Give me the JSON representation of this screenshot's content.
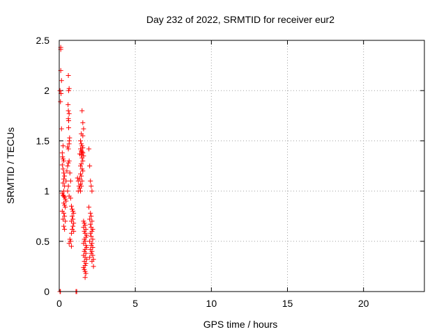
{
  "chart_data": {
    "type": "scatter",
    "title": "Day 232 of 2022, SRMTID for receiver eur2",
    "xlabel": "GPS time / hours",
    "ylabel": "SRMTID / TECUs",
    "xlim": [
      0,
      24
    ],
    "ylim": [
      0,
      2.5
    ],
    "xticks": [
      "0",
      "5",
      "10",
      "15",
      "20"
    ],
    "yticks": [
      "0",
      "0.5",
      "1",
      "1.5",
      "2",
      "2.5"
    ],
    "grid": true,
    "marker": "+",
    "color": "#ff0000",
    "points": [
      [
        0.1,
        2.43
      ],
      [
        0.1,
        2.41
      ],
      [
        0.1,
        2.2
      ],
      [
        0.15,
        2.1
      ],
      [
        0.05,
        2.0
      ],
      [
        0.12,
        1.97
      ],
      [
        0.08,
        1.89
      ],
      [
        0.6,
        2.15
      ],
      [
        0.65,
        2.02
      ],
      [
        0.62,
        2.0
      ],
      [
        0.58,
        1.86
      ],
      [
        0.6,
        1.8
      ],
      [
        0.65,
        1.77
      ],
      [
        0.6,
        1.72
      ],
      [
        0.62,
        1.7
      ],
      [
        0.62,
        1.63
      ],
      [
        0.15,
        1.62
      ],
      [
        0.68,
        1.53
      ],
      [
        0.66,
        1.5
      ],
      [
        0.65,
        1.47
      ],
      [
        0.55,
        1.44
      ],
      [
        0.6,
        1.42
      ],
      [
        0.25,
        1.45
      ],
      [
        0.2,
        1.38
      ],
      [
        0.22,
        1.34
      ],
      [
        0.25,
        1.32
      ],
      [
        0.3,
        1.3
      ],
      [
        0.2,
        1.26
      ],
      [
        0.25,
        1.22
      ],
      [
        0.3,
        1.18
      ],
      [
        0.35,
        1.15
      ],
      [
        0.3,
        1.12
      ],
      [
        0.25,
        1.08
      ],
      [
        0.35,
        1.05
      ],
      [
        0.3,
        1.0
      ],
      [
        0.45,
        1.1
      ],
      [
        0.5,
        1.2
      ],
      [
        0.55,
        1.25
      ],
      [
        0.6,
        1.28
      ],
      [
        0.65,
        1.3
      ],
      [
        0.7,
        1.18
      ],
      [
        0.75,
        1.1
      ],
      [
        0.6,
        1.05
      ],
      [
        0.55,
        1.0
      ],
      [
        0.65,
        0.95
      ],
      [
        0.2,
        0.98
      ],
      [
        0.25,
        0.96
      ],
      [
        0.3,
        0.95
      ],
      [
        0.35,
        0.94
      ],
      [
        0.4,
        0.92
      ],
      [
        0.45,
        0.9
      ],
      [
        0.3,
        0.88
      ],
      [
        0.35,
        0.86
      ],
      [
        0.4,
        0.84
      ],
      [
        0.2,
        0.8
      ],
      [
        0.3,
        0.78
      ],
      [
        0.35,
        0.75
      ],
      [
        0.25,
        0.72
      ],
      [
        0.4,
        0.7
      ],
      [
        0.3,
        0.65
      ],
      [
        0.35,
        0.62
      ],
      [
        0.75,
        0.93
      ],
      [
        0.8,
        0.85
      ],
      [
        0.85,
        0.82
      ],
      [
        0.9,
        0.8
      ],
      [
        0.95,
        0.78
      ],
      [
        0.85,
        0.75
      ],
      [
        0.9,
        0.72
      ],
      [
        0.8,
        0.7
      ],
      [
        0.95,
        0.68
      ],
      [
        0.9,
        0.65
      ],
      [
        0.85,
        0.62
      ],
      [
        0.95,
        0.6
      ],
      [
        0.8,
        0.58
      ],
      [
        0.7,
        0.52
      ],
      [
        0.75,
        0.5
      ],
      [
        0.65,
        0.48
      ],
      [
        0.8,
        0.45
      ],
      [
        1.5,
        1.8
      ],
      [
        1.55,
        1.68
      ],
      [
        1.6,
        1.62
      ],
      [
        1.45,
        1.57
      ],
      [
        1.55,
        1.55
      ],
      [
        1.4,
        1.5
      ],
      [
        1.45,
        1.47
      ],
      [
        1.5,
        1.45
      ],
      [
        1.55,
        1.43
      ],
      [
        1.4,
        1.42
      ],
      [
        1.45,
        1.4
      ],
      [
        1.5,
        1.39
      ],
      [
        1.55,
        1.38
      ],
      [
        1.35,
        1.37
      ],
      [
        1.45,
        1.36
      ],
      [
        1.6,
        1.35
      ],
      [
        1.5,
        1.33
      ],
      [
        1.55,
        1.3
      ],
      [
        1.45,
        1.27
      ],
      [
        1.4,
        1.25
      ],
      [
        1.5,
        1.22
      ],
      [
        1.55,
        1.2
      ],
      [
        1.4,
        1.17
      ],
      [
        1.45,
        1.15
      ],
      [
        1.35,
        1.12
      ],
      [
        1.5,
        1.1
      ],
      [
        1.4,
        1.07
      ],
      [
        1.45,
        1.05
      ],
      [
        1.35,
        1.03
      ],
      [
        1.4,
        1.0
      ],
      [
        1.2,
        1.13
      ],
      [
        1.25,
        1.1
      ],
      [
        1.3,
        1.05
      ],
      [
        1.25,
        1.0
      ],
      [
        1.95,
        1.42
      ],
      [
        2.0,
        1.25
      ],
      [
        2.05,
        1.1
      ],
      [
        2.1,
        1.05
      ],
      [
        2.15,
        1.0
      ],
      [
        1.6,
        0.7
      ],
      [
        1.65,
        0.68
      ],
      [
        1.7,
        0.66
      ],
      [
        1.6,
        0.64
      ],
      [
        1.75,
        0.62
      ],
      [
        1.65,
        0.6
      ],
      [
        1.7,
        0.58
      ],
      [
        1.8,
        0.56
      ],
      [
        1.75,
        0.54
      ],
      [
        1.65,
        0.52
      ],
      [
        1.7,
        0.5
      ],
      [
        1.6,
        0.48
      ],
      [
        1.75,
        0.46
      ],
      [
        1.8,
        0.44
      ],
      [
        1.7,
        0.42
      ],
      [
        1.65,
        0.4
      ],
      [
        1.75,
        0.38
      ],
      [
        1.6,
        0.36
      ],
      [
        1.7,
        0.34
      ],
      [
        1.8,
        0.32
      ],
      [
        1.65,
        0.3
      ],
      [
        1.75,
        0.28
      ],
      [
        1.7,
        0.26
      ],
      [
        1.6,
        0.24
      ],
      [
        1.65,
        0.22
      ],
      [
        1.7,
        0.2
      ],
      [
        1.75,
        0.18
      ],
      [
        1.7,
        0.14
      ],
      [
        1.95,
        0.84
      ],
      [
        2.05,
        0.78
      ],
      [
        2.1,
        0.75
      ],
      [
        2.0,
        0.72
      ],
      [
        2.15,
        0.7
      ],
      [
        2.05,
        0.67
      ],
      [
        2.1,
        0.64
      ],
      [
        2.2,
        0.62
      ],
      [
        2.15,
        0.6
      ],
      [
        2.05,
        0.58
      ],
      [
        2.1,
        0.55
      ],
      [
        2.2,
        0.52
      ],
      [
        2.0,
        0.5
      ],
      [
        2.15,
        0.48
      ],
      [
        2.1,
        0.46
      ],
      [
        2.2,
        0.44
      ],
      [
        2.05,
        0.42
      ],
      [
        2.15,
        0.4
      ],
      [
        2.1,
        0.38
      ],
      [
        2.2,
        0.36
      ],
      [
        2.0,
        0.34
      ],
      [
        2.25,
        0.32
      ],
      [
        2.15,
        0.3
      ],
      [
        2.25,
        0.25
      ],
      [
        0.05,
        0
      ],
      [
        0.08,
        0
      ],
      [
        1.1,
        0
      ],
      [
        1.15,
        0
      ]
    ]
  }
}
